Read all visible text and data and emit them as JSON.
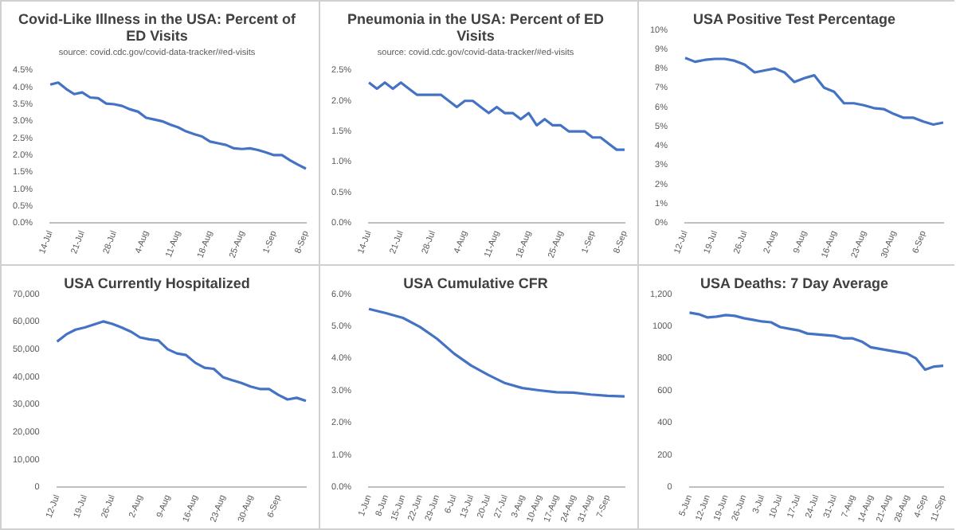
{
  "chart_data": [
    {
      "type": "line",
      "title": "Covid-Like Illness in the USA: Percent of ED Visits",
      "subtitle": "source: covid.cdc.gov/covid-data-tracker/#ed-visits",
      "categories": [
        "14-Jul",
        null,
        null,
        null,
        "21-Jul",
        null,
        null,
        null,
        "28-Jul",
        null,
        null,
        null,
        "4-Aug",
        null,
        null,
        null,
        "11-Aug",
        null,
        null,
        null,
        "18-Aug",
        null,
        null,
        null,
        "25-Aug",
        null,
        null,
        null,
        "1-Sep",
        null,
        null,
        null,
        "8-Sep"
      ],
      "series": [
        {
          "color": "#4472c4",
          "values": [
            4.08,
            4.14,
            3.95,
            3.8,
            3.85,
            3.7,
            3.68,
            3.52,
            3.5,
            3.45,
            3.35,
            3.28,
            3.1,
            3.05,
            3.0,
            2.9,
            2.82,
            2.7,
            2.62,
            2.55,
            2.4,
            2.35,
            2.3,
            2.2,
            2.18,
            2.2,
            2.15,
            2.08,
            2.0,
            2.0,
            1.85,
            1.72,
            1.6
          ]
        }
      ],
      "ylim": [
        0,
        4.5
      ],
      "yticks": [
        {
          "value": 0,
          "label": "0.0%"
        },
        {
          "value": 0.5,
          "label": "0.5%"
        },
        {
          "value": 1,
          "label": "1.0%"
        },
        {
          "value": 1.5,
          "label": "1.5%"
        },
        {
          "value": 2,
          "label": "2.0%"
        },
        {
          "value": 2.5,
          "label": "2.5%"
        },
        {
          "value": 3,
          "label": "3.0%"
        },
        {
          "value": 3.5,
          "label": "3.5%"
        },
        {
          "value": 4,
          "label": "4.0%"
        },
        {
          "value": 4.5,
          "label": "4.5%"
        }
      ],
      "grid": false,
      "legend": false,
      "marker": "none"
    },
    {
      "type": "line",
      "title": "Pneumonia in the USA: Percent of ED Visits",
      "subtitle": "source: covid.cdc.gov/covid-data-tracker/#ed-visits",
      "categories": [
        "14-Jul",
        null,
        null,
        null,
        "21-Jul",
        null,
        null,
        null,
        "28-Jul",
        null,
        null,
        null,
        "4-Aug",
        null,
        null,
        null,
        "11-Aug",
        null,
        null,
        null,
        "18-Aug",
        null,
        null,
        null,
        "25-Aug",
        null,
        null,
        null,
        "1-Sep",
        null,
        null,
        null,
        "8-Sep"
      ],
      "series": [
        {
          "color": "#4472c4",
          "values": [
            2.3,
            2.2,
            2.3,
            2.2,
            2.3,
            2.2,
            2.1,
            2.1,
            2.1,
            2.1,
            2.0,
            1.9,
            2.0,
            2.0,
            1.9,
            1.8,
            1.9,
            1.8,
            1.8,
            1.7,
            1.8,
            1.6,
            1.7,
            1.6,
            1.6,
            1.5,
            1.5,
            1.5,
            1.4,
            1.4,
            1.3,
            1.2,
            1.2
          ]
        }
      ],
      "ylim": [
        0,
        2.5
      ],
      "yticks": [
        {
          "value": 0,
          "label": "0.0%"
        },
        {
          "value": 0.5,
          "label": "0.5%"
        },
        {
          "value": 1,
          "label": "1.0%"
        },
        {
          "value": 1.5,
          "label": "1.5%"
        },
        {
          "value": 2,
          "label": "2.0%"
        },
        {
          "value": 2.5,
          "label": "2.5%"
        }
      ],
      "grid": false,
      "legend": false,
      "marker": "none"
    },
    {
      "type": "line",
      "title": "USA Positive Test Percentage",
      "categories": [
        "12-Jul",
        null,
        null,
        "19-Jul",
        null,
        null,
        "26-Jul",
        null,
        null,
        "2-Aug",
        null,
        null,
        "9-Aug",
        null,
        null,
        "16-Aug",
        null,
        null,
        "23-Aug",
        null,
        null,
        "30-Aug",
        null,
        null,
        "6-Sep",
        null,
        null
      ],
      "series": [
        {
          "color": "#4472c4",
          "values": [
            8.55,
            8.35,
            8.45,
            8.5,
            8.5,
            8.4,
            8.2,
            7.8,
            7.9,
            8.0,
            7.8,
            7.3,
            7.5,
            7.65,
            7.0,
            6.8,
            6.2,
            6.2,
            6.1,
            5.95,
            5.9,
            5.65,
            5.45,
            5.45,
            5.25,
            5.1,
            5.2
          ]
        }
      ],
      "ylim": [
        0,
        10
      ],
      "yticks": [
        {
          "value": 0,
          "label": "0%"
        },
        {
          "value": 1,
          "label": "1%"
        },
        {
          "value": 2,
          "label": "2%"
        },
        {
          "value": 3,
          "label": "3%"
        },
        {
          "value": 4,
          "label": "4%"
        },
        {
          "value": 5,
          "label": "5%"
        },
        {
          "value": 6,
          "label": "6%"
        },
        {
          "value": 7,
          "label": "7%"
        },
        {
          "value": 8,
          "label": "8%"
        },
        {
          "value": 9,
          "label": "9%"
        },
        {
          "value": 10,
          "label": "10%"
        }
      ],
      "grid": false,
      "legend": false,
      "marker": "none"
    },
    {
      "type": "line",
      "title": "USA Currently Hospitalized",
      "categories": [
        "12-Jul",
        null,
        null,
        "19-Jul",
        null,
        null,
        "26-Jul",
        null,
        null,
        "2-Aug",
        null,
        null,
        "9-Aug",
        null,
        null,
        "16-Aug",
        null,
        null,
        "23-Aug",
        null,
        null,
        "30-Aug",
        null,
        null,
        "6-Sep",
        null,
        null,
        null
      ],
      "series": [
        {
          "color": "#4472c4",
          "values": [
            52800,
            55400,
            57100,
            57900,
            59000,
            60100,
            59200,
            57900,
            56400,
            54300,
            53600,
            53200,
            50000,
            48500,
            47900,
            45100,
            43300,
            42900,
            39900,
            38800,
            37800,
            36500,
            35600,
            35600,
            33500,
            31800,
            32400,
            31300
          ]
        }
      ],
      "ylim": [
        0,
        70000
      ],
      "yticks": [
        0,
        {
          "value": 10000,
          "label": "10,000"
        },
        {
          "value": 20000,
          "label": "20,000"
        },
        {
          "value": 30000,
          "label": "30,000"
        },
        {
          "value": 40000,
          "label": "40,000"
        },
        {
          "value": 50000,
          "label": "50,000"
        },
        {
          "value": 60000,
          "label": "60,000"
        },
        {
          "value": 70000,
          "label": "70,000"
        }
      ],
      "grid": false,
      "legend": false,
      "marker": "none"
    },
    {
      "type": "line",
      "title": "USA Cumulative CFR",
      "categories": [
        "1-Jun",
        "8-Jun",
        "15-Jun",
        "22-Jun",
        "29-Jun",
        "6-Jul",
        "13-Jul",
        "20-Jul",
        "27-Jul",
        "3-Aug",
        "10-Aug",
        "17-Aug",
        "24-Aug",
        "31-Aug",
        "7-Sep",
        null
      ],
      "series": [
        {
          "color": "#4472c4",
          "values": [
            5.54,
            5.41,
            5.26,
            4.98,
            4.61,
            4.15,
            3.78,
            3.49,
            3.23,
            3.08,
            3.01,
            2.95,
            2.94,
            2.88,
            2.84,
            2.82
          ]
        }
      ],
      "ylim": [
        0,
        6
      ],
      "yticks": [
        {
          "value": 0,
          "label": "0.0%"
        },
        {
          "value": 1,
          "label": "1.0%"
        },
        {
          "value": 2,
          "label": "2.0%"
        },
        {
          "value": 3,
          "label": "3.0%"
        },
        {
          "value": 4,
          "label": "4.0%"
        },
        {
          "value": 5,
          "label": "5.0%"
        },
        {
          "value": 6,
          "label": "6.0%"
        }
      ],
      "grid": false,
      "legend": false,
      "marker": "none"
    },
    {
      "type": "line",
      "title": "USA Deaths: 7 Day Average",
      "categories": [
        "5-Jun",
        null,
        "12-Jun",
        null,
        "19-Jun",
        null,
        "26-Jun",
        null,
        "3-Jul",
        null,
        "10-Jul",
        null,
        "17-Jul",
        null,
        "24-Jul",
        null,
        "31-Jul",
        null,
        "7-Aug",
        null,
        "14-Aug",
        null,
        "21-Aug",
        null,
        "28-Aug",
        null,
        "4-Sep",
        null,
        "11-Sep"
      ],
      "series": [
        {
          "color": "#4472c4",
          "values": [
            1085,
            1075,
            1055,
            1060,
            1070,
            1065,
            1050,
            1040,
            1030,
            1025,
            995,
            985,
            975,
            955,
            950,
            945,
            940,
            925,
            925,
            905,
            870,
            860,
            850,
            840,
            830,
            800,
            730,
            750,
            755
          ]
        }
      ],
      "ylim": [
        0,
        1200
      ],
      "yticks": [
        0,
        200,
        400,
        600,
        800,
        1000,
        {
          "value": 1200,
          "label": "1,200"
        }
      ],
      "grid": false,
      "legend": false,
      "marker": "none"
    }
  ]
}
